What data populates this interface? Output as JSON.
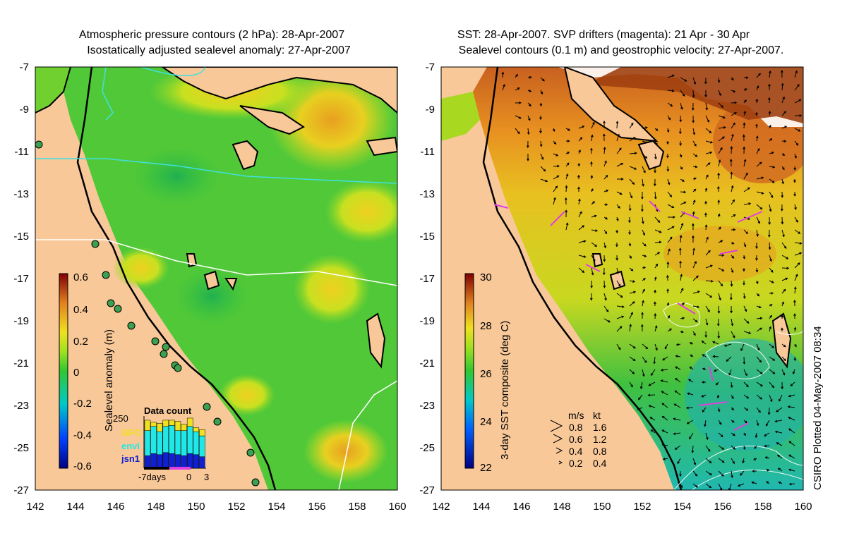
{
  "left_panel": {
    "title_line1": "Atmospheric pressure contours (2 hPa): 28-Apr-2007",
    "title_line2": "Isostatically adjusted sealevel anomaly: 27-Apr-2007",
    "lat_ticks": [
      "-7",
      "-9",
      "-11",
      "-13",
      "-15",
      "-17",
      "-19",
      "-21",
      "-23",
      "-25",
      "-27"
    ],
    "lon_ticks": [
      "142",
      "144",
      "146",
      "148",
      "150",
      "152",
      "154",
      "156",
      "158",
      "160"
    ],
    "colorbar": {
      "label": "Sealevel anomaly (m)",
      "ticks": [
        "0.6",
        "0.4",
        "0.2",
        "0",
        "-0.2",
        "-0.4",
        "-0.6"
      ]
    },
    "data_count": {
      "title": "Data count",
      "ymax": "250",
      "x_labels": [
        "-7days",
        "0",
        "3"
      ],
      "legend": [
        {
          "label": "GFO",
          "color": "#f0e020"
        },
        {
          "label": "envi",
          "color": "#20e8e8"
        },
        {
          "label": "jsn1",
          "color": "#1020d0"
        }
      ],
      "bars_jsn1": [
        60,
        70,
        65,
        75,
        70,
        65,
        60,
        70,
        65,
        55
      ],
      "bars_envi": [
        120,
        130,
        110,
        125,
        135,
        115,
        120,
        130,
        110,
        100
      ],
      "bars_gfo": [
        50,
        20,
        40,
        30,
        25,
        45,
        30,
        40,
        20,
        30
      ]
    }
  },
  "right_panel": {
    "title_line1": "SST: 28-Apr-2007. SVP drifters (magenta): 21 Apr - 30 Apr",
    "title_line2": "Sealevel contours (0.1 m) and geostrophic velocity: 27-Apr-2007.",
    "lat_ticks": [
      "-7",
      "-9",
      "-11",
      "-13",
      "-15",
      "-17",
      "-19",
      "-21",
      "-23",
      "-25",
      "-27"
    ],
    "lon_ticks": [
      "142",
      "144",
      "146",
      "148",
      "150",
      "152",
      "154",
      "156",
      "158",
      "160"
    ],
    "colorbar": {
      "label": "3-day SST composite (deg C)",
      "ticks": [
        "30",
        "28",
        "26",
        "24",
        "22"
      ]
    },
    "velocity_legend": {
      "header_ms": "m/s",
      "header_kt": "kt",
      "rows": [
        {
          "ms": "0.8",
          "kt": "1.6"
        },
        {
          "ms": "0.6",
          "kt": "1.2"
        },
        {
          "ms": "0.4",
          "kt": "0.8"
        },
        {
          "ms": "0.2",
          "kt": "0.4"
        }
      ]
    }
  },
  "credit": "CSIRO Plotted 04-May-2007 08:34",
  "colors": {
    "land": "#f8c898",
    "ocean_green": "#3cc83c",
    "bright_green": "#6cdc28",
    "yellow": "#e8d820",
    "orange": "#e8a020",
    "cyan": "#20c8c0",
    "blue": "#1040c0"
  }
}
